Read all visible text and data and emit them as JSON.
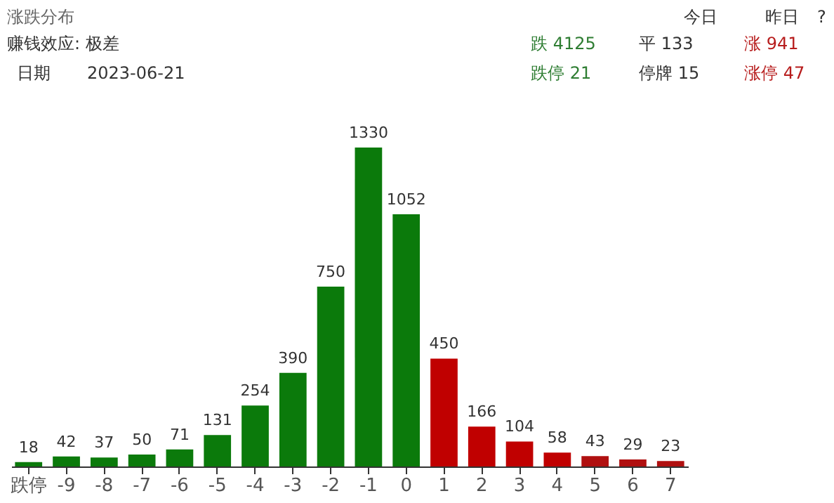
{
  "chart_data": {
    "type": "bar",
    "title": "涨跌分布",
    "categories": [
      "跌停",
      "-9",
      "-8",
      "-7",
      "-6",
      "-5",
      "-4",
      "-3",
      "-2",
      "-1",
      "0",
      "1",
      "2",
      "3",
      "4",
      "5",
      "6",
      "7"
    ],
    "values": [
      18,
      42,
      37,
      50,
      71,
      131,
      254,
      390,
      750,
      1330,
      1052,
      450,
      166,
      104,
      58,
      43,
      29,
      23
    ],
    "colors": [
      "#0b7a0b",
      "#0b7a0b",
      "#0b7a0b",
      "#0b7a0b",
      "#0b7a0b",
      "#0b7a0b",
      "#0b7a0b",
      "#0b7a0b",
      "#0b7a0b",
      "#0b7a0b",
      "#0b7a0b",
      "#c00000",
      "#c00000",
      "#c00000",
      "#c00000",
      "#b01010",
      "#b01010",
      "#b01010"
    ],
    "data_labels": true,
    "grid": false,
    "annotations": [
      "今日",
      "昨日",
      "?",
      "赚钱效应: 极差",
      "日期",
      "2023-06-21",
      "跌 4125",
      "平 133",
      "涨 941",
      "跌停 21",
      "停牌 15",
      "涨停 47"
    ]
  }
}
